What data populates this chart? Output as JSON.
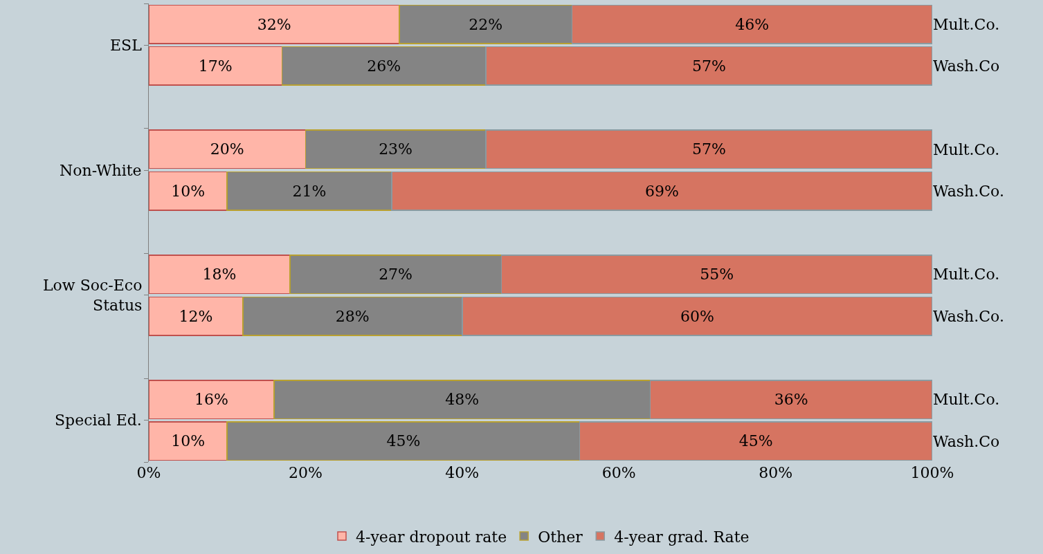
{
  "chart_data": {
    "type": "bar",
    "orientation": "horizontal",
    "stacked": true,
    "categories": [
      "Mult.Co.",
      "Wash.Co",
      "Mult.Co.",
      "Wash.Co.",
      "Mult.Co.",
      "Wash.Co.",
      "Mult.Co.",
      "Wash.Co"
    ],
    "annotations": [
      "ESL",
      "Non-White",
      "Low Soc-Eco\nStatus",
      "Special Ed."
    ],
    "series": [
      {
        "name": "4-year dropout rate",
        "color": "#ffb5a8",
        "values": [
          32,
          17,
          20,
          10,
          18,
          12,
          16,
          10
        ],
        "value_labels": [
          "32%",
          "17%",
          "20%",
          "10%",
          "18%",
          "12%",
          "16%",
          "10%"
        ]
      },
      {
        "name": "Other",
        "color": "#848484",
        "values": [
          22,
          26,
          23,
          21,
          27,
          28,
          48,
          45
        ],
        "value_labels": [
          "22%",
          "26%",
          "23%",
          "21%",
          "27%",
          "28%",
          "48%",
          "45%"
        ]
      },
      {
        "name": "4-year grad. Rate",
        "color": "#d67461",
        "values": [
          46,
          57,
          57,
          69,
          55,
          60,
          36,
          45
        ],
        "value_labels": [
          "46%",
          "57%",
          "57%",
          "69%",
          "55%",
          "60%",
          "36%",
          "45%"
        ]
      }
    ],
    "xlim": [
      0,
      100
    ],
    "xticks": [
      {
        "value": 0,
        "label": "0%"
      },
      {
        "value": 20,
        "label": "20%"
      },
      {
        "value": 40,
        "label": "40%"
      },
      {
        "value": 60,
        "label": "60%"
      },
      {
        "value": 80,
        "label": "80%"
      },
      {
        "value": 100,
        "label": "100%"
      }
    ],
    "grid": false,
    "legend": "bottom"
  }
}
